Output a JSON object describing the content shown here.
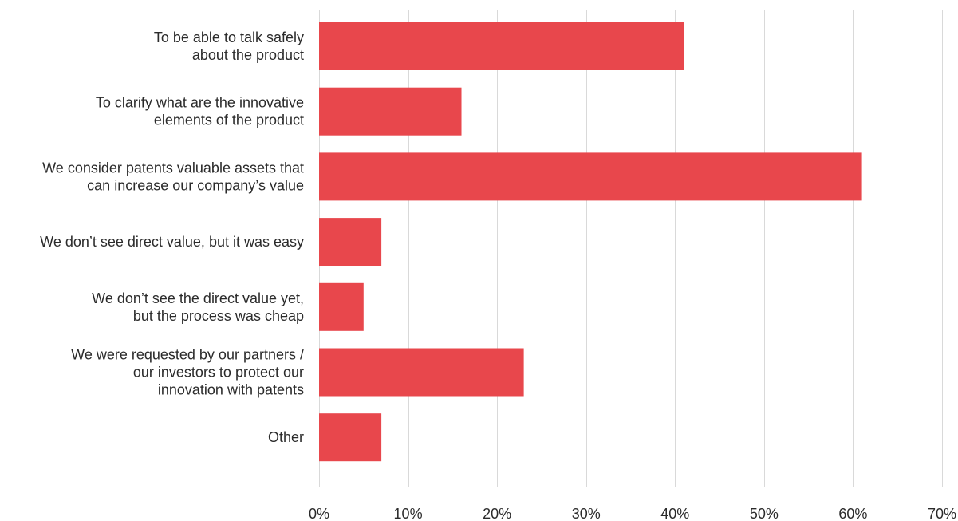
{
  "chart_data": {
    "type": "bar",
    "orientation": "horizontal",
    "categories": [
      [
        "To be able to talk safely",
        "about the product"
      ],
      [
        "To clarify what are the innovative",
        "elements of the product"
      ],
      [
        "We consider patents valuable assets that",
        "can increase our company’s value"
      ],
      [
        "We don’t see direct value, but it was easy"
      ],
      [
        "We don’t see the direct value yet,",
        "but the process was cheap"
      ],
      [
        "We were requested by our partners /",
        "our investors to protect our",
        "innovation with patents"
      ],
      [
        "Other"
      ]
    ],
    "values": [
      41,
      16,
      61,
      7,
      5,
      23,
      7
    ],
    "xlim": [
      0,
      70
    ],
    "ticks": [
      "0%",
      "10%",
      "20%",
      "30%",
      "40%",
      "50%",
      "60%",
      "70%"
    ],
    "tick_values": [
      0,
      10,
      20,
      30,
      40,
      50,
      60,
      70
    ],
    "bar_color": "#e8474c",
    "grid": true
  }
}
